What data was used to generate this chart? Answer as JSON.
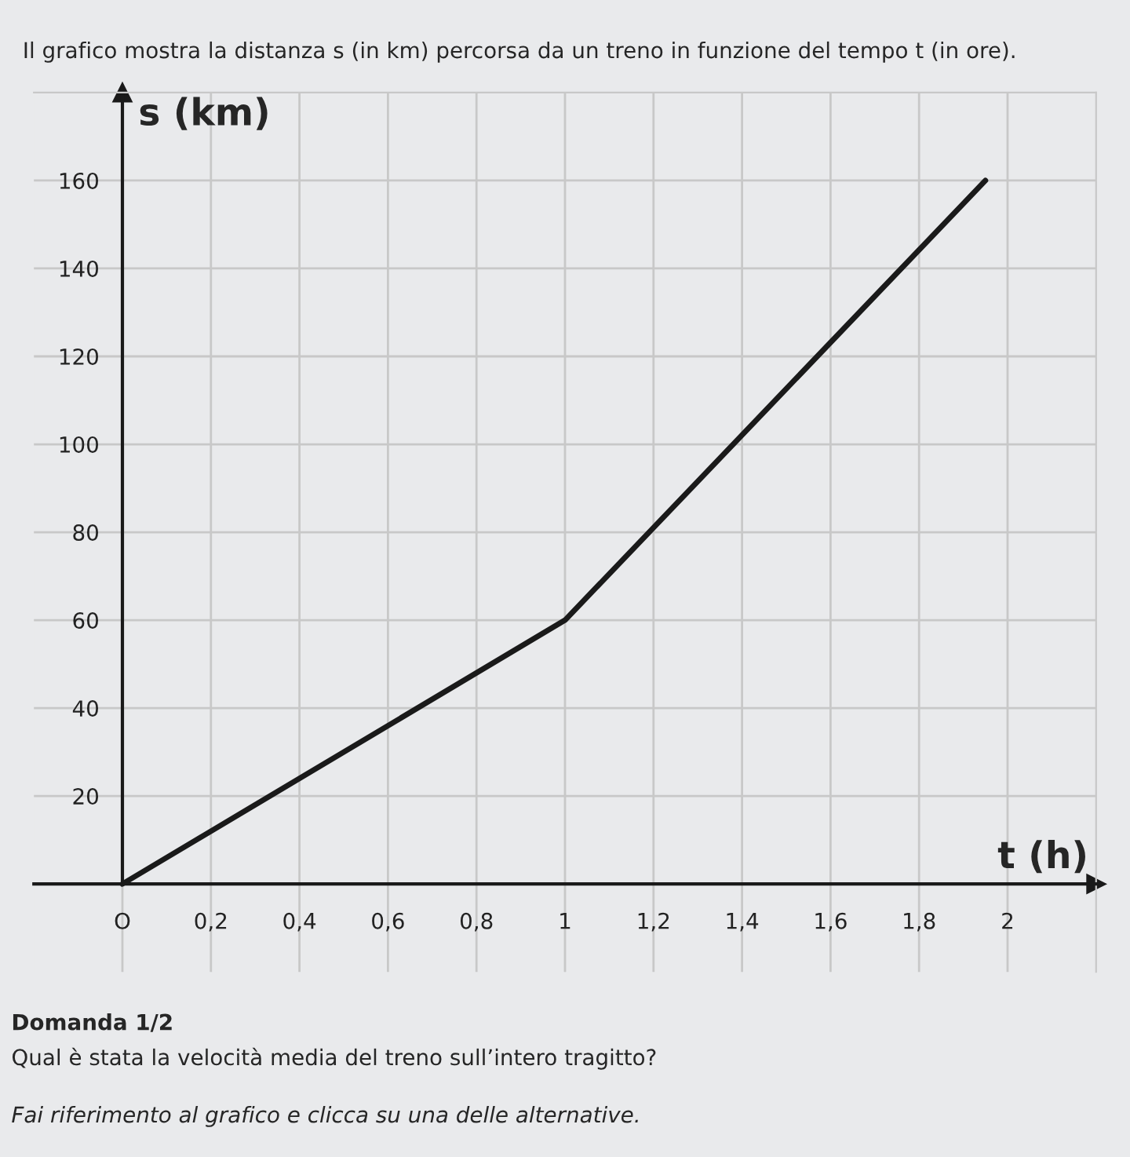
{
  "chart_data": {
    "type": "line",
    "title": "Il grafico mostra la distanza s (in km) percorsa da un treno in funzione del tempo t (in ore).",
    "xlabel": "t (h)",
    "ylabel": "s (km)",
    "x": [
      0,
      1,
      1.95
    ],
    "series": [
      {
        "color": "#1a1a1a",
        "values": [
          0,
          60,
          160
        ]
      }
    ],
    "xlim": [
      -0.2,
      2.2
    ],
    "ylim": [
      -20,
      180
    ],
    "xticks": [
      {
        "value": 0,
        "label": "O"
      },
      {
        "value": 0.2,
        "label": "0,2"
      },
      {
        "value": 0.4,
        "label": "0,4"
      },
      {
        "value": 0.6,
        "label": "0,6"
      },
      {
        "value": 0.8,
        "label": "0,8"
      },
      1,
      {
        "value": 1.2,
        "label": "1,2"
      },
      {
        "value": 1.4,
        "label": "1,4"
      },
      {
        "value": 1.6,
        "label": "1,6"
      },
      {
        "value": 1.8,
        "label": "1,8"
      },
      2
    ],
    "yticks": [
      20,
      40,
      60,
      80,
      100,
      120,
      140,
      160
    ],
    "grid": true,
    "marker": "none",
    "line_style": "solid",
    "annotations": [
      "Domanda 1/2",
      "Qual è stata la velocità media del treno sull’intero tragitto?",
      "Fai riferimento al grafico e clicca su una delle alternative."
    ]
  }
}
